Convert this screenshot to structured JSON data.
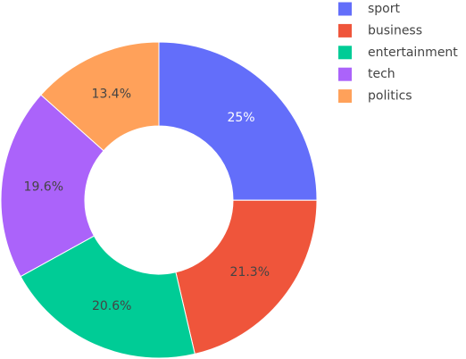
{
  "chart_data": {
    "type": "pie",
    "hole": true,
    "legend_position": "top-right",
    "slices": [
      {
        "label": "sport",
        "value": 25.0,
        "display": "25%",
        "color": "#636efa",
        "text_color": "#ffffff"
      },
      {
        "label": "business",
        "value": 21.3,
        "display": "21.3%",
        "color": "#ef553b",
        "text_color": "#444444"
      },
      {
        "label": "entertainment",
        "value": 20.6,
        "display": "20.6%",
        "color": "#00cc96",
        "text_color": "#444444"
      },
      {
        "label": "tech",
        "value": 19.6,
        "display": "19.6%",
        "color": "#ab63fa",
        "text_color": "#444444"
      },
      {
        "label": "politics",
        "value": 13.4,
        "display": "13.4%",
        "color": "#ffa15a",
        "text_color": "#444444"
      }
    ]
  }
}
